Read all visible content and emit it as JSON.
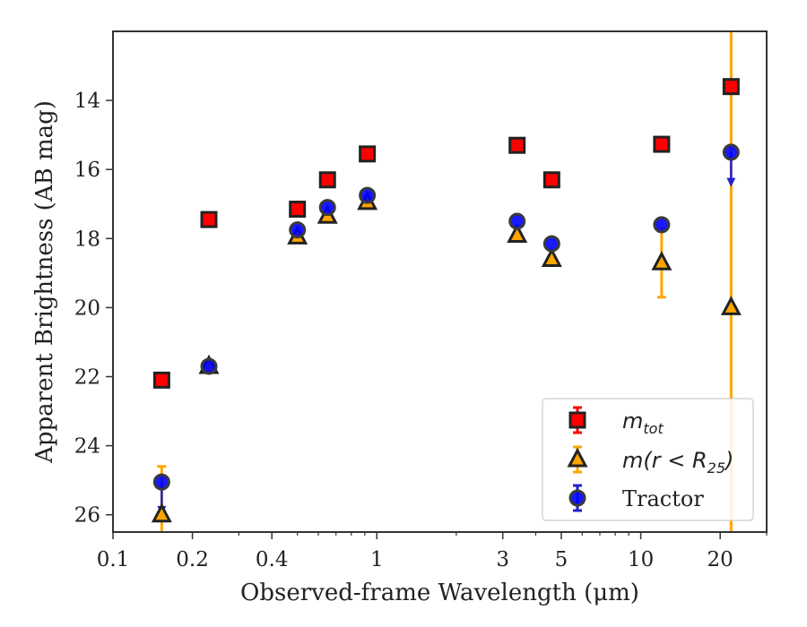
{
  "chart_data": {
    "type": "scatter",
    "xlabel": "Observed-frame Wavelength (μm)",
    "ylabel": "Apparent Brightness (AB mag)",
    "xscale": "log",
    "xlim": [
      0.1,
      30
    ],
    "ylim": [
      26.5,
      12.0
    ],
    "y_inverted": true,
    "xticks": [
      {
        "value": 0.1,
        "label": "0.1"
      },
      {
        "value": 0.2,
        "label": "0.2"
      },
      {
        "value": 0.4,
        "label": "0.4"
      },
      {
        "value": 1,
        "label": "1"
      },
      {
        "value": 3,
        "label": "3"
      },
      {
        "value": 5,
        "label": "5"
      },
      {
        "value": 10,
        "label": "10"
      },
      {
        "value": 20,
        "label": "20"
      }
    ],
    "yticks": [
      {
        "value": 14,
        "label": "14"
      },
      {
        "value": 16,
        "label": "16"
      },
      {
        "value": 18,
        "label": "18"
      },
      {
        "value": 20,
        "label": "20"
      },
      {
        "value": 22,
        "label": "22"
      },
      {
        "value": 24,
        "label": "24"
      },
      {
        "value": 26,
        "label": "26"
      }
    ],
    "grid": false,
    "legend_position": "lower-right",
    "series": [
      {
        "key": "mtot",
        "marker": "square",
        "color": "#ff0000",
        "edge_color": "#222222",
        "points": [
          {
            "x": 0.153,
            "y": 22.1
          },
          {
            "x": 0.231,
            "y": 17.45
          },
          {
            "x": 0.5,
            "y": 17.15
          },
          {
            "x": 0.65,
            "y": 16.3
          },
          {
            "x": 0.92,
            "y": 15.55
          },
          {
            "x": 3.4,
            "y": 15.3
          },
          {
            "x": 4.6,
            "y": 16.3
          },
          {
            "x": 12.0,
            "y": 15.27
          },
          {
            "x": 22.0,
            "y": 13.6
          }
        ]
      },
      {
        "key": "mr25",
        "marker": "triangle",
        "color": "#ffa500",
        "edge_color": "#222222",
        "errorbar_color": "#ffa500",
        "points": [
          {
            "x": 0.153,
            "y": 26.0,
            "err_low": 1.4,
            "err_high": 1.4
          },
          {
            "x": 0.231,
            "y": 21.7
          },
          {
            "x": 0.5,
            "y": 17.95
          },
          {
            "x": 0.65,
            "y": 17.35
          },
          {
            "x": 0.92,
            "y": 16.95
          },
          {
            "x": 3.4,
            "y": 17.9
          },
          {
            "x": 4.6,
            "y": 18.6
          },
          {
            "x": 12.0,
            "y": 18.7,
            "err_low": 1.0,
            "err_high": 1.0
          },
          {
            "x": 22.0,
            "y": 20.0,
            "err_low": 9.0,
            "err_high": 9.0
          }
        ]
      },
      {
        "key": "tractor",
        "name": "Tractor",
        "marker": "circle",
        "color": "#0000ff",
        "edge_color": "#3a3a3a",
        "errorbar_color": "#2222cc",
        "points": [
          {
            "x": 0.153,
            "y": 25.05,
            "upper_limit": true,
            "limit_to": 25.9
          },
          {
            "x": 0.231,
            "y": 21.7
          },
          {
            "x": 0.5,
            "y": 17.75
          },
          {
            "x": 0.65,
            "y": 17.1
          },
          {
            "x": 0.92,
            "y": 16.75
          },
          {
            "x": 3.4,
            "y": 17.5
          },
          {
            "x": 4.6,
            "y": 18.15
          },
          {
            "x": 12.0,
            "y": 17.6
          },
          {
            "x": 22.0,
            "y": 15.5,
            "upper_limit": true,
            "limit_to": 16.4
          }
        ]
      }
    ],
    "legend": [
      {
        "key": "mtot",
        "base": "m",
        "sub": "tot",
        "rest": ""
      },
      {
        "key": "mr25",
        "base": "m(r < R",
        "sub": "25",
        "rest": ")"
      },
      {
        "key": "tractor",
        "text": "Tractor"
      }
    ]
  }
}
